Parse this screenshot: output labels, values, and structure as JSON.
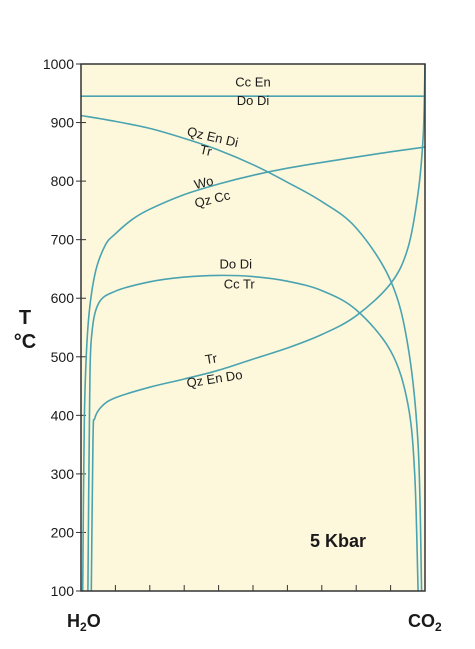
{
  "chart_data": {
    "type": "line",
    "y_axis": {
      "title_main": "T",
      "title_unit": "°C",
      "ylim": [
        100,
        1000
      ],
      "ticks": [
        100,
        200,
        300,
        400,
        500,
        600,
        700,
        800,
        900,
        1000
      ]
    },
    "x_axis": {
      "xlim": [
        0,
        1
      ],
      "left_label": {
        "main": "H",
        "sub": "2",
        "rest": "O"
      },
      "right_label": {
        "main": "CO",
        "sub": "2"
      },
      "minor_ticks": [
        0.1,
        0.2,
        0.3,
        0.4,
        0.5,
        0.6,
        0.7,
        0.8,
        0.9
      ]
    },
    "annotation": "5 Kbar",
    "colors": {
      "curve": "#4aa3b0",
      "plot_bg": "#fdf8dc",
      "axis": "#333333"
    },
    "series": [
      {
        "x": [
          0,
          1
        ],
        "y": [
          945,
          945
        ]
      },
      {
        "x": [
          0,
          0.1,
          0.2,
          0.3,
          0.4,
          0.5,
          0.6,
          0.7,
          0.8,
          0.9,
          0.95,
          0.98,
          0.99
        ],
        "y": [
          912,
          902,
          890,
          873,
          853,
          828,
          798,
          765,
          720,
          630,
          520,
          350,
          100
        ]
      },
      {
        "x": [
          0.005,
          0.01,
          0.02,
          0.04,
          0.07,
          0.1,
          0.15,
          0.2,
          0.3,
          0.4,
          0.5,
          0.6,
          0.7,
          0.8,
          0.9,
          1.0
        ],
        "y": [
          100,
          400,
          550,
          640,
          690,
          710,
          735,
          752,
          777,
          795,
          810,
          822,
          832,
          841,
          850,
          858
        ]
      },
      {
        "x": [
          0.02,
          0.025,
          0.03,
          0.05,
          0.1,
          0.2,
          0.3,
          0.4,
          0.5,
          0.6,
          0.7,
          0.8,
          0.9,
          0.95,
          0.97,
          0.98
        ],
        "y": [
          100,
          420,
          530,
          590,
          612,
          628,
          636,
          639,
          637,
          629,
          613,
          580,
          510,
          420,
          300,
          100
        ]
      },
      {
        "x": [
          0.03,
          0.035,
          0.04,
          0.06,
          0.1,
          0.2,
          0.3,
          0.4,
          0.5,
          0.6,
          0.7,
          0.8,
          0.9,
          0.95,
          0.98,
          0.995,
          1.0
        ],
        "y": [
          100,
          360,
          395,
          415,
          430,
          448,
          462,
          477,
          496,
          515,
          538,
          570,
          625,
          685,
          780,
          880,
          1000
        ]
      }
    ],
    "labels": [
      {
        "text": "Cc En",
        "x": 0.5,
        "y": 962,
        "rotate": 0
      },
      {
        "text": "Do Di",
        "x": 0.5,
        "y": 930,
        "rotate": 0
      },
      {
        "text": "Qz En Di",
        "x": 0.38,
        "y": 868,
        "rotate": 13
      },
      {
        "text": "Tr",
        "x": 0.36,
        "y": 845,
        "rotate": 13
      },
      {
        "text": "Wo",
        "x": 0.36,
        "y": 790,
        "rotate": -14
      },
      {
        "text": "Qz Cc",
        "x": 0.385,
        "y": 762,
        "rotate": -14
      },
      {
        "text": "Do Di",
        "x": 0.45,
        "y": 651,
        "rotate": 0
      },
      {
        "text": "Cc Tr",
        "x": 0.46,
        "y": 617,
        "rotate": 0
      },
      {
        "text": "Tr",
        "x": 0.38,
        "y": 489,
        "rotate": -9
      },
      {
        "text": "Qz En Do",
        "x": 0.39,
        "y": 455,
        "rotate": -9
      }
    ]
  }
}
